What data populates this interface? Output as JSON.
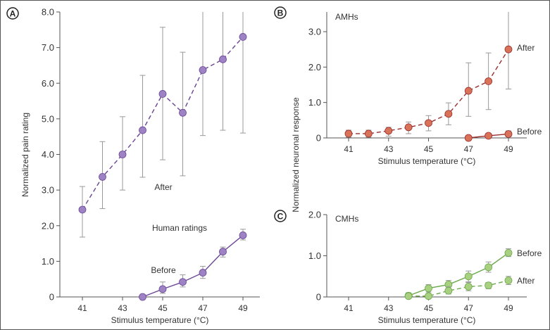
{
  "chart_data": [
    {
      "type": "line",
      "panel_label": "A",
      "annotation": "Human ratings",
      "xlabel": "Stimulus temperature (°C)",
      "ylabel": "Normalized pain rating",
      "x_ticks": [
        "41",
        "43",
        "45",
        "47",
        "49"
      ],
      "y_ticks": [
        "0",
        "1.0",
        "2.0",
        "3.0",
        "4.0",
        "5.0",
        "6.0",
        "7.0",
        "8.0"
      ],
      "xlim": [
        40,
        50
      ],
      "ylim": [
        0,
        8
      ],
      "colors": {
        "fill": "#9d83c4",
        "line": "#6a4596"
      },
      "series": [
        {
          "name": "After",
          "dashed": true,
          "x": [
            41,
            42,
            43,
            44,
            45,
            46,
            47,
            48,
            49
          ],
          "y": [
            2.45,
            3.37,
            4.0,
            4.68,
            5.7,
            5.17,
            6.37,
            6.67,
            7.3
          ],
          "err_low": [
            1.68,
            2.48,
            3.0,
            3.36,
            3.85,
            3.4,
            4.53,
            4.68,
            4.6
          ],
          "err_high": [
            3.1,
            4.36,
            5.06,
            6.22,
            7.57,
            6.87,
            8.0,
            8.0,
            8.0
          ]
        },
        {
          "name": "Before",
          "dashed": false,
          "x": [
            44,
            45,
            46,
            47,
            48,
            49
          ],
          "y": [
            0,
            0.22,
            0.42,
            0.68,
            1.27,
            1.73
          ],
          "err_low": [
            0,
            0.1,
            0.28,
            0.52,
            1.12,
            1.6
          ],
          "err_high": [
            0,
            0.42,
            0.62,
            0.86,
            1.4,
            1.9
          ]
        }
      ]
    },
    {
      "type": "line",
      "panel_label": "B",
      "annotation": "AMHs",
      "xlabel": "Stimulus temperature (°C)",
      "ylabel": "Normalized neuronal response",
      "x_ticks": [
        "41",
        "43",
        "45",
        "47",
        "49"
      ],
      "y_ticks": [
        "0",
        "1.0",
        "2.0",
        "3.0"
      ],
      "xlim": [
        40,
        50
      ],
      "ylim": [
        0,
        3.6
      ],
      "colors": {
        "fill": "#d8735a",
        "line": "#9a2c2c"
      },
      "series": [
        {
          "name": "After",
          "dashed": true,
          "x": [
            41,
            42,
            43,
            44,
            45,
            46,
            47,
            48,
            49
          ],
          "y": [
            0.12,
            0.12,
            0.2,
            0.3,
            0.42,
            0.68,
            1.33,
            1.6,
            2.5
          ],
          "err_low": [
            0.02,
            0.02,
            0.05,
            0.12,
            0.2,
            0.37,
            0.61,
            0.8,
            1.38
          ],
          "err_high": [
            0.22,
            0.22,
            0.3,
            0.45,
            0.63,
            0.99,
            2.12,
            2.4,
            3.56
          ]
        },
        {
          "name": "Before",
          "dashed": false,
          "x": [
            47,
            48,
            49
          ],
          "y": [
            0,
            0.06,
            0.11
          ],
          "err_low": [
            0,
            0,
            0.03
          ],
          "err_high": [
            0,
            0.12,
            0.2
          ]
        }
      ]
    },
    {
      "type": "line",
      "panel_label": "C",
      "annotation": "CMHs",
      "xlabel": "Stimulus temperature (°C)",
      "x_ticks": [
        "41",
        "43",
        "45",
        "47",
        "49"
      ],
      "y_ticks": [
        "0",
        "1.0",
        "2.0"
      ],
      "xlim": [
        40,
        50
      ],
      "ylim": [
        0,
        2
      ],
      "colors": {
        "fill": "#a9d080",
        "line": "#6aa84a"
      },
      "series": [
        {
          "name": "Before",
          "dashed": false,
          "x": [
            44,
            45,
            46,
            47,
            48,
            49
          ],
          "y": [
            0.03,
            0.21,
            0.3,
            0.5,
            0.72,
            1.07
          ],
          "err_low": [
            0,
            0.12,
            0.2,
            0.37,
            0.6,
            0.98
          ],
          "err_high": [
            0.1,
            0.3,
            0.4,
            0.63,
            0.85,
            1.17
          ]
        },
        {
          "name": "After",
          "dashed": true,
          "x": [
            44,
            45,
            46,
            47,
            48,
            49
          ],
          "y": [
            0.02,
            0.02,
            0.15,
            0.25,
            0.28,
            0.4
          ],
          "err_low": [
            0,
            0,
            0.07,
            0.15,
            0.2,
            0.3
          ],
          "err_high": [
            0.05,
            0.05,
            0.25,
            0.35,
            0.35,
            0.5
          ]
        }
      ]
    }
  ]
}
